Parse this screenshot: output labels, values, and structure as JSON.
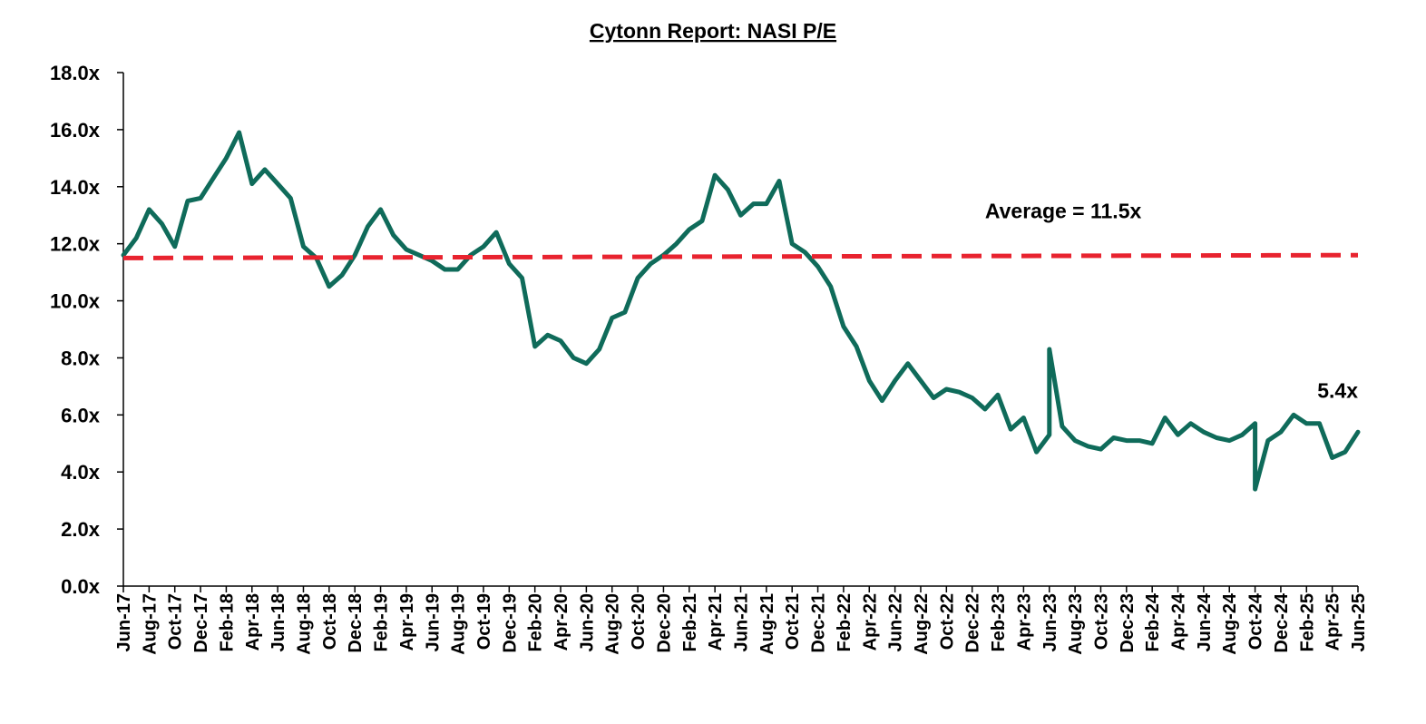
{
  "chart_data": {
    "type": "line",
    "title": "Cytonn Report: NASI P/E",
    "xlabel": "",
    "ylabel": "",
    "ylim": [
      0,
      18
    ],
    "y_ticks": [
      "0.0x",
      "2.0x",
      "4.0x",
      "6.0x",
      "8.0x",
      "10.0x",
      "12.0x",
      "14.0x",
      "16.0x",
      "18.0x"
    ],
    "x_ticks": [
      "Jun-17",
      "Aug-17",
      "Oct-17",
      "Dec-17",
      "Feb-18",
      "Apr-18",
      "Jun-18",
      "Aug-18",
      "Oct-18",
      "Dec-18",
      "Feb-19",
      "Apr-19",
      "Jun-19",
      "Aug-19",
      "Oct-19",
      "Dec-19",
      "Feb-20",
      "Apr-20",
      "Jun-20",
      "Aug-20",
      "Oct-20",
      "Dec-20",
      "Feb-21",
      "Apr-21",
      "Jun-21",
      "Aug-21",
      "Oct-21",
      "Dec-21",
      "Feb-22",
      "Apr-22",
      "Jun-22",
      "Aug-22",
      "Oct-22",
      "Dec-22",
      "Feb-23",
      "Apr-23",
      "Jun-23",
      "Aug-23",
      "Oct-23",
      "Dec-23",
      "Feb-24",
      "Apr-24",
      "Jun-24",
      "Aug-24",
      "Oct-24",
      "Dec-24",
      "Feb-25",
      "Apr-25",
      "Jun-25"
    ],
    "grid": false,
    "legend": "none",
    "series": [
      {
        "role": "pe",
        "color": "#0f6b5a",
        "points": [
          [
            "Jun-17",
            11.6
          ],
          [
            "Jul-17",
            12.2
          ],
          [
            "Aug-17",
            13.2
          ],
          [
            "Sep-17",
            12.7
          ],
          [
            "Oct-17",
            11.9
          ],
          [
            "Nov-17",
            13.5
          ],
          [
            "Dec-17",
            13.6
          ],
          [
            "Jan-18",
            14.3
          ],
          [
            "Feb-18",
            15.0
          ],
          [
            "Mar-18",
            15.9
          ],
          [
            "Apr-18",
            14.1
          ],
          [
            "May-18",
            14.6
          ],
          [
            "Jun-18",
            14.1
          ],
          [
            "Jul-18",
            13.6
          ],
          [
            "Aug-18",
            11.9
          ],
          [
            "Sep-18",
            11.5
          ],
          [
            "Oct-18",
            10.5
          ],
          [
            "Nov-18",
            10.9
          ],
          [
            "Dec-18",
            11.6
          ],
          [
            "Jan-19",
            12.6
          ],
          [
            "Feb-19",
            13.2
          ],
          [
            "Mar-19",
            12.3
          ],
          [
            "Apr-19",
            11.8
          ],
          [
            "May-19",
            11.6
          ],
          [
            "Jun-19",
            11.4
          ],
          [
            "Jul-19",
            11.1
          ],
          [
            "Aug-19",
            11.1
          ],
          [
            "Sep-19",
            11.6
          ],
          [
            "Oct-19",
            11.9
          ],
          [
            "Nov-19",
            12.4
          ],
          [
            "Dec-19",
            11.3
          ],
          [
            "Jan-20",
            10.8
          ],
          [
            "Feb-20",
            8.4
          ],
          [
            "Mar-20",
            8.8
          ],
          [
            "Apr-20",
            8.6
          ],
          [
            "May-20",
            8.0
          ],
          [
            "Jun-20",
            7.8
          ],
          [
            "Jul-20",
            8.3
          ],
          [
            "Aug-20",
            9.4
          ],
          [
            "Sep-20",
            9.6
          ],
          [
            "Oct-20",
            10.8
          ],
          [
            "Nov-20",
            11.3
          ],
          [
            "Dec-20",
            11.6
          ],
          [
            "Jan-21",
            12.0
          ],
          [
            "Feb-21",
            12.5
          ],
          [
            "Mar-21",
            12.8
          ],
          [
            "Apr-21",
            14.4
          ],
          [
            "May-21",
            13.9
          ],
          [
            "Jun-21",
            13.0
          ],
          [
            "Jul-21",
            13.4
          ],
          [
            "Aug-21",
            13.4
          ],
          [
            "Sep-21",
            14.2
          ],
          [
            "Oct-21",
            12.0
          ],
          [
            "Nov-21",
            11.7
          ],
          [
            "Dec-21",
            11.2
          ],
          [
            "Jan-22",
            10.5
          ],
          [
            "Feb-22",
            9.1
          ],
          [
            "Mar-22",
            8.4
          ],
          [
            "Apr-22",
            7.2
          ],
          [
            "May-22",
            6.5
          ],
          [
            "Jun-22",
            7.2
          ],
          [
            "Jul-22",
            7.8
          ],
          [
            "Aug-22",
            7.2
          ],
          [
            "Sep-22",
            6.6
          ],
          [
            "Oct-22",
            6.9
          ],
          [
            "Nov-22",
            6.8
          ],
          [
            "Dec-22",
            6.6
          ],
          [
            "Jan-23",
            6.2
          ],
          [
            "Feb-23",
            6.7
          ],
          [
            "Mar-23",
            5.5
          ],
          [
            "Apr-23",
            5.9
          ],
          [
            "May-23",
            4.7
          ],
          [
            "Jun-23",
            5.3
          ],
          [
            "Jun-23",
            8.3
          ],
          [
            "Jul-23",
            5.6
          ],
          [
            "Aug-23",
            5.1
          ],
          [
            "Sep-23",
            4.9
          ],
          [
            "Oct-23",
            4.8
          ],
          [
            "Nov-23",
            5.2
          ],
          [
            "Dec-23",
            5.1
          ],
          [
            "Jan-24",
            5.1
          ],
          [
            "Feb-24",
            5.0
          ],
          [
            "Mar-24",
            5.9
          ],
          [
            "Apr-24",
            5.3
          ],
          [
            "May-24",
            5.7
          ],
          [
            "Jun-24",
            5.4
          ],
          [
            "Jul-24",
            5.2
          ],
          [
            "Aug-24",
            5.1
          ],
          [
            "Sep-24",
            5.3
          ],
          [
            "Oct-24",
            5.7
          ],
          [
            "Oct-24",
            3.4
          ],
          [
            "Nov-24",
            5.1
          ],
          [
            "Dec-24",
            5.4
          ],
          [
            "Jan-25",
            6.0
          ],
          [
            "Feb-25",
            5.7
          ],
          [
            "Mar-25",
            5.7
          ],
          [
            "Apr-25",
            4.5
          ],
          [
            "May-25",
            4.7
          ],
          [
            "Jun-25",
            5.4
          ]
        ]
      },
      {
        "role": "average",
        "color": "#e8232f",
        "style": "dashed",
        "points": [
          [
            "Jun-17",
            11.5
          ],
          [
            "Jun-25",
            11.6
          ]
        ]
      }
    ],
    "annotations": [
      {
        "text": "Average = 11.5x",
        "x": "Jan-23",
        "y": 12.9
      },
      {
        "text": "5.4x",
        "x": "Jun-25",
        "y": 6.6,
        "anchor": "end"
      }
    ]
  }
}
